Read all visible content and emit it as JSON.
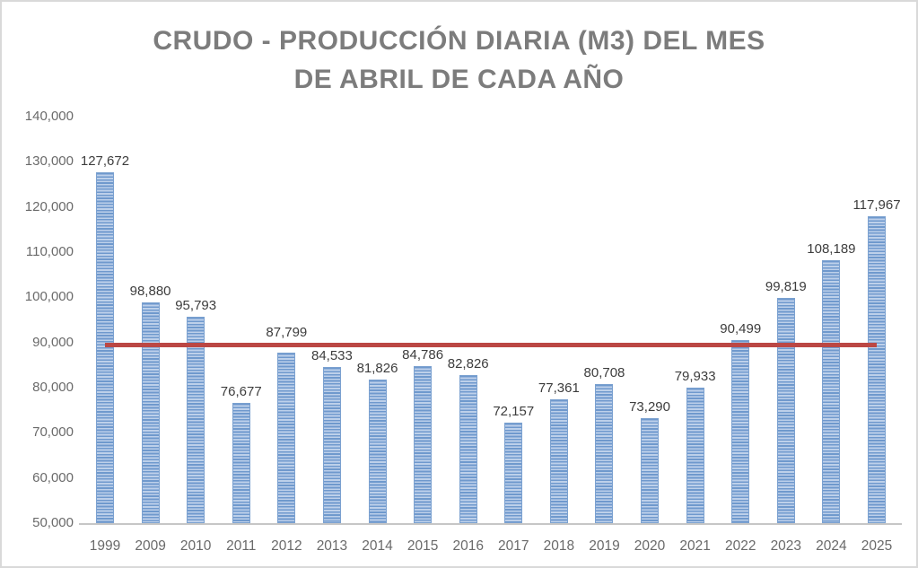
{
  "window": {
    "background": "#ffffff",
    "frame_border_color": "#d9d9d9"
  },
  "chart_data": {
    "type": "bar",
    "title": "CRUDO - PRODUCCIÓN DIARIA (M3) DEL MES DE ABRIL DE CADA AÑO",
    "title_lines": [
      "CRUDO - PRODUCCIÓN DIARIA (M3) DEL MES",
      "DE ABRIL DE CADA AÑO"
    ],
    "xlabel": "",
    "ylabel": "",
    "categories": [
      "1999",
      "2009",
      "2010",
      "2011",
      "2012",
      "2013",
      "2014",
      "2015",
      "2016",
      "2017",
      "2018",
      "2019",
      "2020",
      "2021",
      "2022",
      "2023",
      "2024",
      "2025"
    ],
    "values": [
      127672,
      98880,
      95793,
      76677,
      87799,
      84533,
      81826,
      84786,
      82826,
      72157,
      77361,
      80708,
      73290,
      79933,
      90499,
      99819,
      108189,
      117967
    ],
    "data_labels": [
      "127,672",
      "98,880",
      "95,793",
      "76,677",
      "87,799",
      "84,533",
      "81,826",
      "84,786",
      "82,826",
      "72,157",
      "77,361",
      "80,708",
      "73,290",
      "79,933",
      "90,499",
      "99,819",
      "108,189",
      "117,967"
    ],
    "ylim": [
      50000,
      140000
    ],
    "ytick_step": 10000,
    "ytick_labels": [
      "140,000",
      "130,000",
      "120,000",
      "110,000",
      "100,000",
      "90,000",
      "80,000",
      "70,000",
      "60,000",
      "50,000"
    ],
    "gridlines": false,
    "legend": "none",
    "ref_line": {
      "value": 90000,
      "color": "#bb4744"
    },
    "colors": {
      "title": "#7c7c7c",
      "axis_labels": "#6a6a6a",
      "data_labels": "#3d3d3d",
      "axis_line": "#c6c6c6",
      "bar_stripe_dark": "#6f99cd",
      "bar_stripe_light": "#bdd0ea",
      "bar_border": "#7ba1d0"
    }
  }
}
